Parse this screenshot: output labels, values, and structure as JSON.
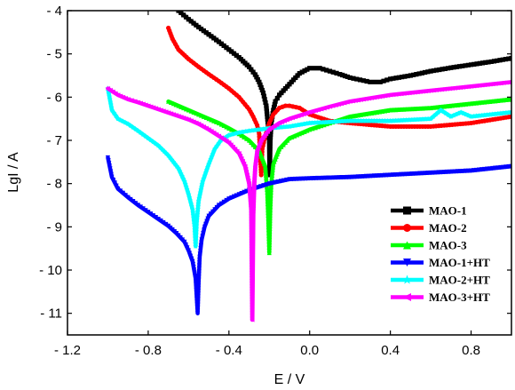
{
  "chart_data": {
    "type": "line",
    "title": "",
    "xlabel": "E / V",
    "ylabel": "LgI / A",
    "xlim": [
      -1.2,
      1.0
    ],
    "ylim": [
      -11.5,
      -4
    ],
    "xticks": [
      -1.2,
      -0.8,
      -0.4,
      0.0,
      0.4,
      0.8
    ],
    "xtick_labels": [
      "- 1.2",
      "- 0.8",
      "- 0.4",
      "0.0",
      "0.4",
      "0.8"
    ],
    "yticks": [
      -4,
      -5,
      -6,
      -7,
      -8,
      -9,
      -10,
      -11
    ],
    "ytick_labels": [
      "- 4",
      "- 5",
      "- 6",
      "- 7",
      "- 8",
      "- 9",
      "- 10",
      "- 11"
    ],
    "grid": false,
    "legend_position": "bottom-right",
    "series": [
      {
        "name": "MAO-1",
        "color": "#000000",
        "marker": "square",
        "x": [
          -0.65,
          -0.6,
          -0.55,
          -0.5,
          -0.45,
          -0.4,
          -0.35,
          -0.3,
          -0.27,
          -0.25,
          -0.23,
          -0.215,
          -0.205,
          -0.2,
          -0.198,
          -0.195,
          -0.19,
          -0.18,
          -0.17,
          -0.15,
          -0.12,
          -0.1,
          -0.05,
          0.0,
          0.05,
          0.1,
          0.15,
          0.2,
          0.25,
          0.3,
          0.35,
          0.4,
          0.5,
          0.6,
          0.7,
          0.8,
          0.9,
          1.0
        ],
        "y": [
          -4.0,
          -4.2,
          -4.38,
          -4.55,
          -4.72,
          -4.9,
          -5.08,
          -5.3,
          -5.48,
          -5.65,
          -5.9,
          -6.2,
          -6.7,
          -7.0,
          -7.8,
          -7.0,
          -6.6,
          -6.3,
          -6.1,
          -5.95,
          -5.8,
          -5.7,
          -5.45,
          -5.33,
          -5.33,
          -5.4,
          -5.47,
          -5.55,
          -5.6,
          -5.65,
          -5.65,
          -5.58,
          -5.5,
          -5.4,
          -5.32,
          -5.25,
          -5.18,
          -5.1
        ]
      },
      {
        "name": "MAO-2",
        "color": "#ff0000",
        "marker": "circle",
        "x": [
          -0.7,
          -0.68,
          -0.65,
          -0.6,
          -0.55,
          -0.5,
          -0.45,
          -0.4,
          -0.35,
          -0.3,
          -0.28,
          -0.26,
          -0.25,
          -0.245,
          -0.24,
          -0.235,
          -0.22,
          -0.2,
          -0.18,
          -0.15,
          -0.12,
          -0.1,
          -0.05,
          0.0,
          0.1,
          0.2,
          0.4,
          0.6,
          0.8,
          1.0
        ],
        "y": [
          -4.4,
          -4.65,
          -4.9,
          -5.12,
          -5.3,
          -5.47,
          -5.63,
          -5.8,
          -6.0,
          -6.28,
          -6.45,
          -6.65,
          -6.85,
          -7.3,
          -7.8,
          -7.2,
          -6.9,
          -6.6,
          -6.4,
          -6.25,
          -6.2,
          -6.2,
          -6.25,
          -6.4,
          -6.55,
          -6.6,
          -6.68,
          -6.68,
          -6.6,
          -6.45
        ]
      },
      {
        "name": "MAO-3",
        "color": "#00ff00",
        "marker": "triangle-up",
        "x": [
          -0.7,
          -0.65,
          -0.6,
          -0.55,
          -0.5,
          -0.45,
          -0.4,
          -0.35,
          -0.3,
          -0.25,
          -0.22,
          -0.21,
          -0.205,
          -0.2,
          -0.195,
          -0.19,
          -0.18,
          -0.15,
          -0.1,
          -0.05,
          0.0,
          0.1,
          0.2,
          0.4,
          0.6,
          0.8,
          1.0
        ],
        "y": [
          -6.1,
          -6.2,
          -6.3,
          -6.4,
          -6.5,
          -6.6,
          -6.72,
          -6.85,
          -7.0,
          -7.25,
          -7.6,
          -8.2,
          -8.8,
          -9.6,
          -8.6,
          -8.0,
          -7.55,
          -7.2,
          -6.95,
          -6.85,
          -6.75,
          -6.6,
          -6.45,
          -6.3,
          -6.25,
          -6.15,
          -6.05
        ]
      },
      {
        "name": "MAO-1+HT",
        "color": "#0000ff",
        "marker": "triangle-down",
        "x": [
          -1.0,
          -0.98,
          -0.95,
          -0.9,
          -0.85,
          -0.8,
          -0.75,
          -0.7,
          -0.66,
          -0.62,
          -0.6,
          -0.58,
          -0.565,
          -0.555,
          -0.55,
          -0.545,
          -0.535,
          -0.52,
          -0.5,
          -0.45,
          -0.4,
          -0.3,
          -0.2,
          -0.1,
          0.0,
          0.2,
          0.4,
          0.6,
          0.8,
          1.0
        ],
        "y": [
          -7.4,
          -7.85,
          -8.12,
          -8.32,
          -8.5,
          -8.66,
          -8.82,
          -8.98,
          -9.15,
          -9.35,
          -9.55,
          -9.8,
          -10.2,
          -11.0,
          -10.3,
          -9.7,
          -9.3,
          -9.0,
          -8.75,
          -8.5,
          -8.35,
          -8.15,
          -8.0,
          -7.9,
          -7.88,
          -7.85,
          -7.8,
          -7.75,
          -7.7,
          -7.6
        ]
      },
      {
        "name": "MAO-2+HT",
        "color": "#00ffff",
        "marker": "star",
        "x": [
          -1.0,
          -0.98,
          -0.95,
          -0.9,
          -0.85,
          -0.8,
          -0.75,
          -0.7,
          -0.65,
          -0.62,
          -0.6,
          -0.58,
          -0.57,
          -0.565,
          -0.56,
          -0.55,
          -0.53,
          -0.5,
          -0.47,
          -0.44,
          -0.4,
          -0.35,
          -0.3,
          -0.2,
          -0.1,
          0.0,
          0.2,
          0.4,
          0.6,
          0.65,
          0.7,
          0.75,
          0.8,
          1.0
        ],
        "y": [
          -5.8,
          -6.3,
          -6.5,
          -6.62,
          -6.78,
          -6.95,
          -7.12,
          -7.35,
          -7.65,
          -7.95,
          -8.25,
          -8.6,
          -9.0,
          -9.45,
          -8.9,
          -8.4,
          -7.95,
          -7.55,
          -7.2,
          -7.0,
          -6.88,
          -6.82,
          -6.78,
          -6.72,
          -6.68,
          -6.6,
          -6.55,
          -6.55,
          -6.5,
          -6.3,
          -6.45,
          -6.35,
          -6.45,
          -6.35
        ]
      },
      {
        "name": "MAO-3+HT",
        "color": "#ff00ff",
        "marker": "triangle-left",
        "x": [
          -1.0,
          -0.95,
          -0.9,
          -0.85,
          -0.8,
          -0.75,
          -0.7,
          -0.65,
          -0.6,
          -0.55,
          -0.5,
          -0.45,
          -0.4,
          -0.35,
          -0.32,
          -0.3,
          -0.29,
          -0.285,
          -0.28,
          -0.275,
          -0.27,
          -0.26,
          -0.24,
          -0.2,
          -0.15,
          -0.1,
          0.0,
          0.1,
          0.2,
          0.4,
          0.6,
          0.8,
          1.0
        ],
        "y": [
          -5.8,
          -5.95,
          -6.05,
          -6.12,
          -6.2,
          -6.28,
          -6.36,
          -6.44,
          -6.52,
          -6.62,
          -6.75,
          -6.9,
          -7.05,
          -7.3,
          -7.6,
          -8.0,
          -8.6,
          -11.15,
          -8.7,
          -8.0,
          -7.6,
          -7.25,
          -7.0,
          -6.75,
          -6.6,
          -6.5,
          -6.35,
          -6.22,
          -6.1,
          -5.95,
          -5.85,
          -5.75,
          -5.65
        ]
      }
    ]
  }
}
